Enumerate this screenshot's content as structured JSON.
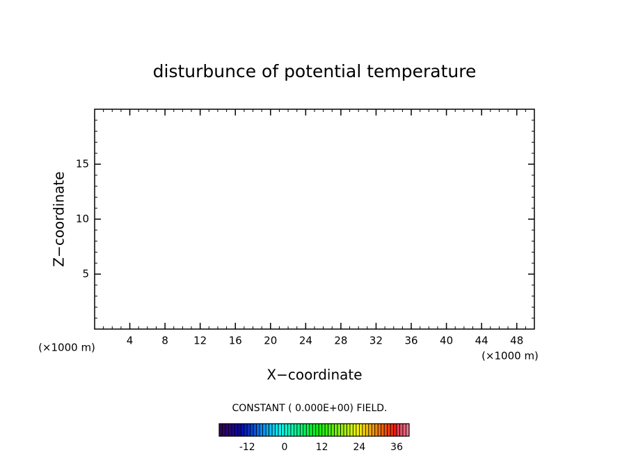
{
  "chart_data": {
    "type": "contour",
    "title": "disturbunce of potential temperature",
    "x_label": "X−coordinate",
    "y_label": "Z−coordinate",
    "x_unit": "(×1000 m)",
    "y_unit": "(×1000 m)",
    "xlim": [
      0,
      50
    ],
    "xticks": [
      4,
      8,
      12,
      16,
      20,
      24,
      28,
      32,
      36,
      40,
      44,
      48
    ],
    "ylim": [
      0,
      20
    ],
    "yticks": [
      5,
      10,
      15
    ],
    "minor_tick_step": 1,
    "field_note": "CONSTANT ( 0.000E+00) FIELD.",
    "colorbar": {
      "colormap": "rainbow",
      "lim": [
        -21,
        40
      ],
      "step": 1,
      "ticks": [
        -12,
        0,
        12,
        24,
        36
      ]
    }
  }
}
